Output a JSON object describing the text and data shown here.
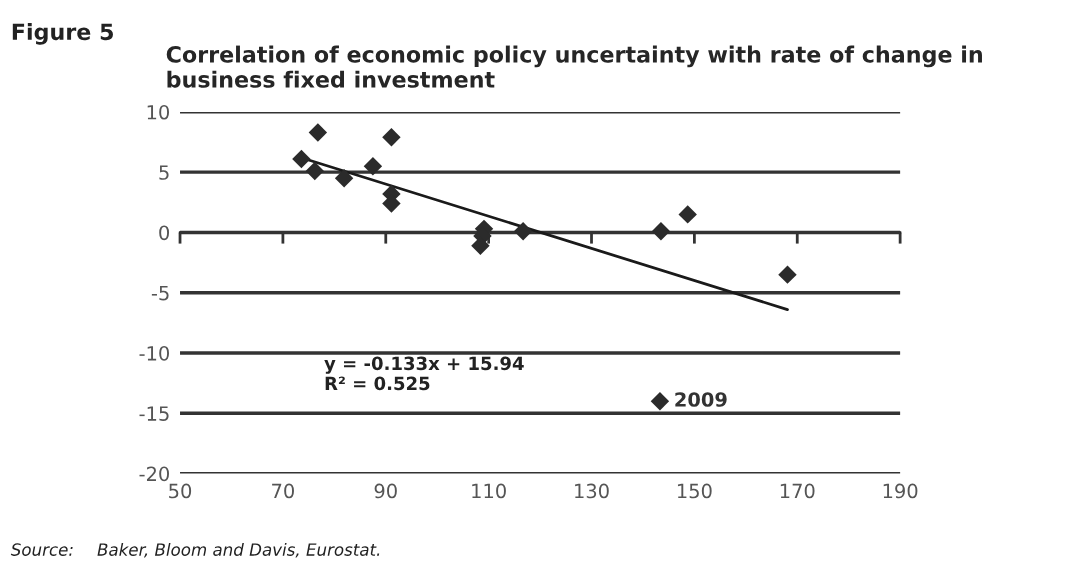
{
  "chart_data": {
    "type": "scatter",
    "title": "Correlation of economic policy uncertainty with rate of change in business fixed investment",
    "xlim": [
      50,
      190
    ],
    "xticks": [
      50,
      70,
      90,
      110,
      130,
      150,
      170,
      190
    ],
    "ylim": [
      -20,
      10
    ],
    "yticks": [
      -20,
      -15,
      -10,
      -5,
      0,
      5,
      10
    ],
    "grid": "y",
    "series": [
      {
        "marker": "diamond",
        "color": "#2b2b2b",
        "x": [
          73.6,
          76.8,
          76.2,
          81.9,
          87.5,
          91.1,
          91.1,
          91.1,
          109.1,
          108.8,
          108.4,
          116.7,
          143.5,
          148.7,
          168.1,
          143.3
        ],
        "values": [
          6.1,
          8.3,
          5.1,
          4.5,
          5.5,
          7.9,
          3.2,
          2.4,
          0.3,
          -0.3,
          -1.1,
          0.1,
          0.1,
          1.5,
          -3.5,
          -14
        ]
      },
      {
        "type": "line",
        "color": "#1a1a1a",
        "x": [
          73.6,
          168.1
        ],
        "values": [
          6.2,
          -6.4
        ]
      }
    ],
    "annotations": [
      "Figure 5",
      {
        "text": "2009",
        "x": 143.3,
        "y": -14
      },
      "y = -0.133x + 15.94",
      "R² = 0.525",
      "Source:",
      "Baker, Bloom and Davis, Eurostat."
    ]
  }
}
